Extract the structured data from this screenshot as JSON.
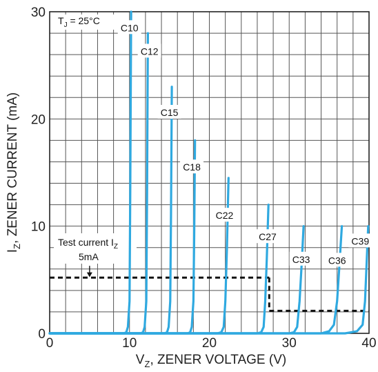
{
  "chart_data": {
    "type": "line",
    "title": "",
    "xlabel_main": "V",
    "xlabel_sub": "Z",
    "xlabel_rest": ", ZENER VOLTAGE (V)",
    "ylabel_main": "I",
    "ylabel_sub": "Z",
    "ylabel_rest": ", ZENER CURRENT (mA)",
    "xlim": [
      0,
      40
    ],
    "ylim": [
      0,
      30
    ],
    "x_ticks": [
      0,
      10,
      20,
      30,
      40
    ],
    "y_ticks": [
      0,
      10,
      20,
      30
    ],
    "x_tick_labels": [
      "0",
      "10",
      "20",
      "30",
      "40"
    ],
    "y_tick_labels": [
      "0",
      "10",
      "20",
      "30"
    ],
    "grid": true,
    "x_grid_step": 2,
    "y_grid_step": 2,
    "curve_color": "#2fa9e0",
    "temperature_main": "T",
    "temperature_sub": "J",
    "temperature_rest": " = 25°C",
    "test_current": {
      "label_main": "Test current I",
      "label_sub": "Z",
      "value_label": "5mA",
      "segments": [
        {
          "x": [
            0,
            27.5
          ],
          "y": [
            5.2,
            5.2
          ]
        },
        {
          "x": [
            27.5,
            27.5
          ],
          "y": [
            5.2,
            2.1
          ]
        },
        {
          "x": [
            27.5,
            40
          ],
          "y": [
            2.1,
            2.1
          ]
        }
      ],
      "arrow_x": 5,
      "arrow_from_y": 6.3,
      "arrow_to_y": 5.3
    },
    "series": [
      {
        "name": "C10",
        "x": [
          0,
          9.3,
          9.6,
          9.8,
          10.0,
          10.1,
          10.2
        ],
        "y": [
          0,
          0,
          0.1,
          0.6,
          3,
          14,
          30
        ],
        "label_x": 10.0,
        "label_y": 28.5
      },
      {
        "name": "C12",
        "x": [
          0,
          11.4,
          11.7,
          11.9,
          12.1,
          12.2,
          12.3
        ],
        "y": [
          0,
          0,
          0.1,
          0.6,
          3,
          13,
          28
        ],
        "label_x": 12.5,
        "label_y": 26.3
      },
      {
        "name": "C15",
        "x": [
          0,
          14.4,
          14.7,
          14.9,
          15.1,
          15.2,
          15.3
        ],
        "y": [
          0,
          0,
          0.1,
          0.6,
          3,
          11,
          23
        ],
        "label_x": 15.0,
        "label_y": 20.6
      },
      {
        "name": "C18",
        "x": [
          0,
          17.3,
          17.6,
          17.8,
          18.0,
          18.1,
          18.2
        ],
        "y": [
          0,
          0,
          0.1,
          0.6,
          3,
          9,
          18
        ],
        "label_x": 17.8,
        "label_y": 15.5
      },
      {
        "name": "C22",
        "x": [
          0,
          21.0,
          21.5,
          21.8,
          22.0,
          22.2,
          22.4
        ],
        "y": [
          0,
          0,
          0.1,
          0.6,
          3,
          8,
          14.5
        ],
        "label_x": 21.9,
        "label_y": 11.0
      },
      {
        "name": "C27",
        "x": [
          0,
          26.0,
          26.5,
          26.8,
          27.0,
          27.2,
          27.4
        ],
        "y": [
          0,
          0,
          0.1,
          0.6,
          3,
          7,
          12
        ],
        "label_x": 27.3,
        "label_y": 9.0
      },
      {
        "name": "C33",
        "x": [
          0,
          30.0,
          30.6,
          31.0,
          31.3,
          31.6,
          31.8
        ],
        "y": [
          0,
          0,
          0.1,
          0.6,
          3,
          7,
          10
        ],
        "label_x": 31.5,
        "label_y": 6.9
      },
      {
        "name": "C36",
        "x": [
          0,
          34.0,
          35.0,
          35.6,
          36.0,
          36.3,
          36.6
        ],
        "y": [
          0,
          0,
          0.2,
          0.8,
          3,
          6.5,
          10
        ],
        "label_x": 36.0,
        "label_y": 6.8
      },
      {
        "name": "C39",
        "x": [
          0,
          37.0,
          38.5,
          39.2,
          39.5,
          39.7,
          39.9
        ],
        "y": [
          0,
          0,
          0.2,
          0.8,
          3,
          6.5,
          10
        ],
        "label_x": 38.9,
        "label_y": 8.6
      }
    ]
  }
}
